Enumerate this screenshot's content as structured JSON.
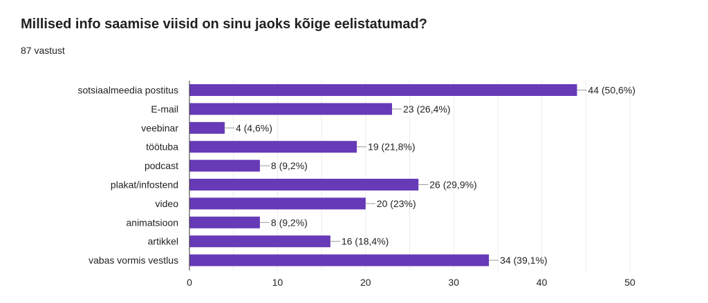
{
  "title": "Millised info saamise viisid on sinu jaoks kõige eelistatumad?",
  "response_count": "87 vastust",
  "chart_data": {
    "type": "bar",
    "orientation": "horizontal",
    "title": "Millised info saamise viisid on sinu jaoks kõige eelistatumad?",
    "categories": [
      "sotsiaalmeedia postitus",
      "E-mail",
      "veebinar",
      "töötuba",
      "podcast",
      "plakat/infostend",
      "video",
      "animatsioon",
      "artikkel",
      "vabas vormis vestlus"
    ],
    "values": [
      44,
      23,
      4,
      19,
      8,
      26,
      20,
      8,
      16,
      34
    ],
    "data_labels": [
      "44 (50,6%)",
      "23 (26,4%)",
      "4 (4,6%)",
      "19 (21,8%)",
      "8 (9,2%)",
      "26 (29,9%)",
      "20 (23%)",
      "8 (9,2%)",
      "16 (18,4%)",
      "34 (39,1%)"
    ],
    "xlim": [
      0,
      50
    ],
    "xticks": [
      0,
      10,
      20,
      30,
      40,
      50
    ],
    "grid": true,
    "color": "#673ab7"
  }
}
